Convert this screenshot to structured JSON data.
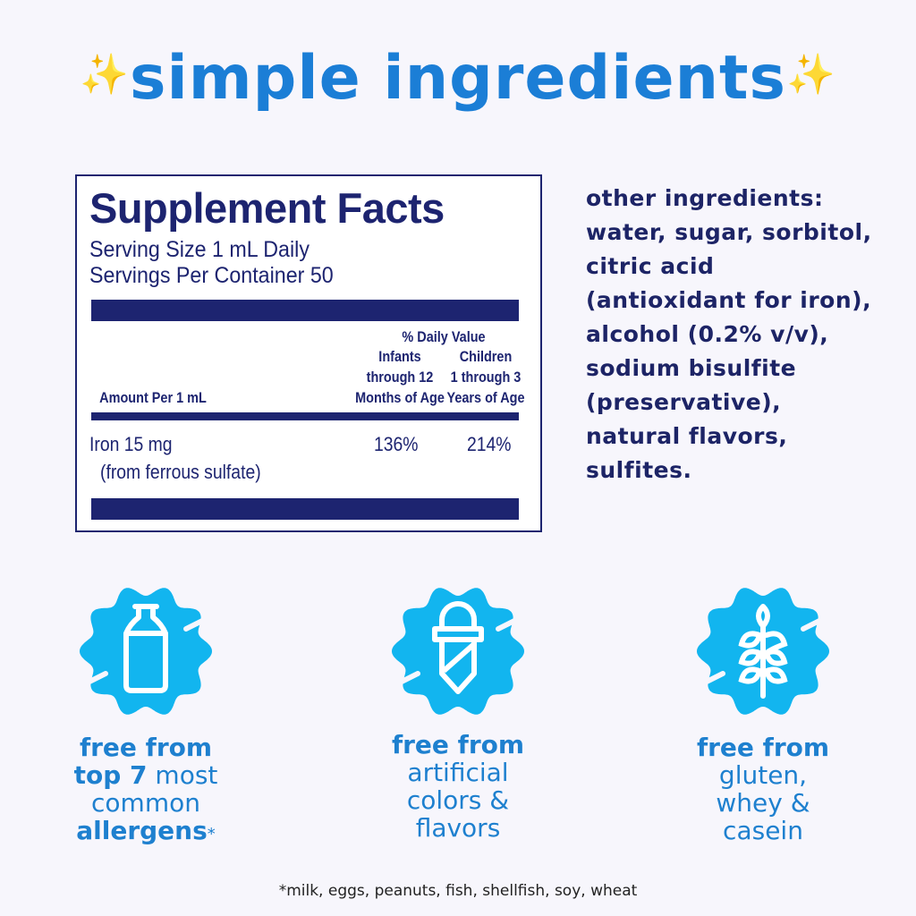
{
  "title": {
    "spark_icon": "sparkles-icon",
    "text": "simple ingredients"
  },
  "facts": {
    "heading": "Supplement Facts",
    "serving_size": "Serving Size 1 mL Daily",
    "servings_per_container": "Servings Per Container 50",
    "daily_value": "% Daily Value",
    "amount_per": "Amount Per 1 mL",
    "col1": [
      "Infants",
      "through 12",
      "Months of Age"
    ],
    "col2": [
      "Children",
      "1 through 3",
      "Years of Age"
    ],
    "row": {
      "name": "Iron  15 mg",
      "source": "(from ferrous sulfate)",
      "infants": "136%",
      "children": "214%"
    }
  },
  "other_ingredients": {
    "label": "other ingredients:",
    "text": "water, sugar, sorbitol, citric acid (antioxidant for iron), alcohol (0.2% v/v), sodium bisulfite (preservative), natural flavors, sulfites."
  },
  "badges": [
    {
      "icon": "milk-bottle-icon",
      "lines": [
        [
          "free from",
          ""
        ],
        [
          "top 7",
          " most"
        ],
        [
          "",
          "common"
        ],
        [
          "allergens",
          "*"
        ]
      ]
    },
    {
      "icon": "dropper-icon",
      "lines": [
        [
          "free from",
          ""
        ],
        [
          "",
          "artificial"
        ],
        [
          "",
          "colors &"
        ],
        [
          "",
          "flavors"
        ]
      ]
    },
    {
      "icon": "wheat-icon",
      "lines": [
        [
          "free from",
          ""
        ],
        [
          "",
          "gluten,"
        ],
        [
          "",
          "whey &"
        ],
        [
          "",
          "casein"
        ]
      ]
    }
  ],
  "footnote": "*milk, eggs, peanuts, fish, shellfish, soy, wheat",
  "colors": {
    "title": "#1b7ed6",
    "navy": "#1d2470",
    "badge": "#12b5ef",
    "caption": "#1e80cf",
    "background": "#f7f6fc"
  }
}
